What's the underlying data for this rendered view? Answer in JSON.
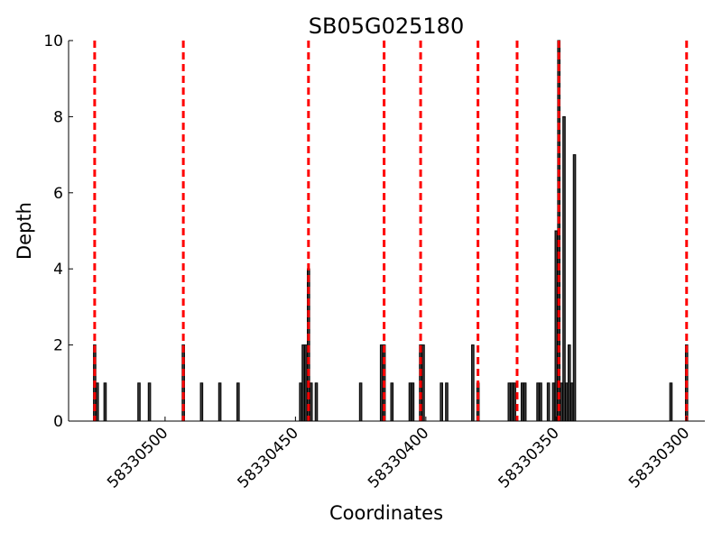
{
  "chart_data": {
    "type": "bar",
    "title": "SB05G025180",
    "xlabel": "Coordinates",
    "ylabel": "Depth",
    "xlim": [
      58330537,
      58330293
    ],
    "ylim": [
      0,
      10
    ],
    "x_ticks": [
      58330500,
      58330450,
      58330400,
      58330350,
      58330300
    ],
    "y_ticks": [
      0,
      2,
      4,
      6,
      8,
      10
    ],
    "grid": false,
    "bar_color": "#3a3a3a",
    "vline_color": "#ff0000",
    "series": [
      {
        "x": [
          58330527,
          58330526,
          58330523,
          58330510,
          58330506,
          58330493,
          58330486,
          58330479,
          58330472,
          58330448,
          58330447,
          58330446,
          58330445,
          58330444,
          58330442,
          58330425,
          58330417,
          58330416,
          58330413,
          58330406,
          58330405,
          58330402,
          58330401,
          58330394,
          58330392,
          58330382,
          58330380,
          58330368,
          58330367,
          58330366,
          58330363,
          58330362,
          58330357,
          58330356,
          58330353,
          58330351,
          58330350,
          58330349,
          58330348,
          58330347,
          58330346,
          58330345,
          58330344,
          58330343,
          58330306,
          58330300
        ],
        "values": [
          2,
          1,
          1,
          1,
          1,
          2,
          1,
          1,
          1,
          1,
          2,
          2,
          4,
          1,
          1,
          1,
          2,
          2,
          1,
          1,
          1,
          2,
          2,
          1,
          1,
          2,
          1,
          1,
          1,
          1,
          1,
          1,
          1,
          1,
          1,
          1,
          5,
          10,
          1,
          8,
          1,
          2,
          1,
          7,
          1,
          2
        ]
      }
    ],
    "vlines": [
      58330527,
      58330493,
      58330445,
      58330416,
      58330402,
      58330380,
      58330365,
      58330349,
      58330300
    ]
  }
}
